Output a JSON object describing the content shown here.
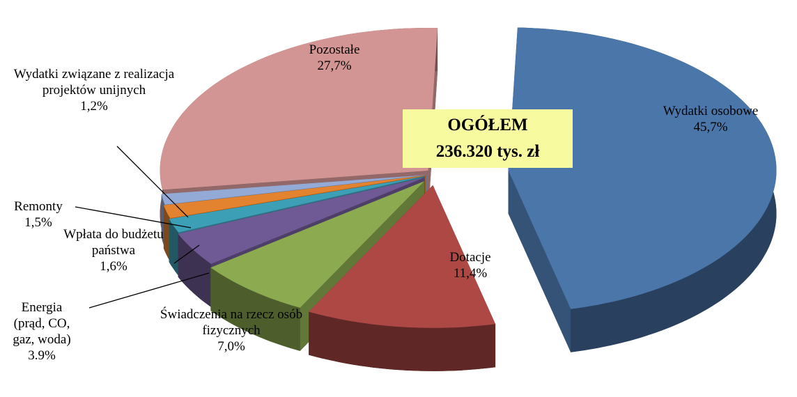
{
  "chart_data": {
    "type": "pie",
    "title": "OGÓŁEM",
    "subtitle": "236.320 tys. zł",
    "categories": [
      "Wydatki osobowe",
      "Dotacje",
      "Świadczenia na rzecz osób fizycznych",
      "Energia (prąd, CO, gaz, woda)",
      "Wpłata do budżetu państwa",
      "Remonty",
      "Wydatki związane z realizacja projektów unijnych",
      "Pozostałe"
    ],
    "values": [
      45.7,
      11.4,
      7.0,
      3.9,
      1.6,
      1.5,
      1.2,
      27.7
    ],
    "value_labels": [
      "45,7%",
      "11,4%",
      "7,0%",
      "3.9%",
      "1,6%",
      "1,5%",
      "1,2%",
      "27,7%"
    ],
    "colors": [
      "#4a76aa",
      "#ad4845",
      "#8cab50",
      "#705a96",
      "#3d9fb5",
      "#e4832f",
      "#93aad6",
      "#d29594"
    ]
  }
}
